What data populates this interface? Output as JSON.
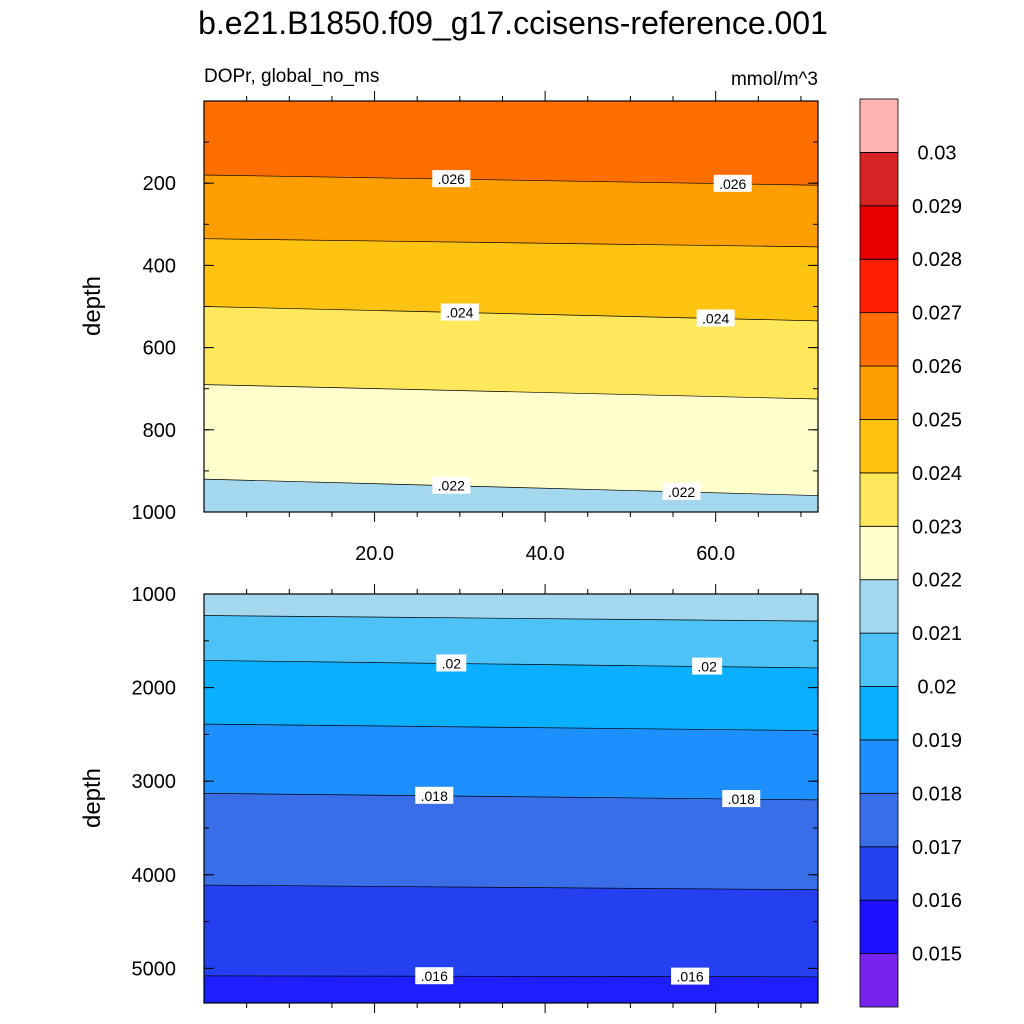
{
  "title": "b.e21.B1850.f09_g17.ccisens-reference.001",
  "subtitle_left": "DOPr, global_no_ms",
  "subtitle_right": "mmol/m^3",
  "chart_data": [
    {
      "type": "heatmap",
      "panel": "upper",
      "ylabel": "depth",
      "xlim": [
        0,
        72
      ],
      "ylim": [
        1000,
        0
      ],
      "x_ticks": [
        20,
        40,
        60
      ],
      "x_tick_labels": [
        "20.0",
        "40.0",
        "60.0"
      ],
      "y_ticks": [
        200,
        400,
        600,
        800,
        1000
      ],
      "y_tick_labels": [
        "200",
        "400",
        "600",
        "800",
        "1000"
      ],
      "contours": [
        {
          "level": 0.026,
          "label": ".026",
          "depth_at_xmin": 180,
          "depth_at_xmax": 205,
          "label_x": [
            29,
            62
          ]
        },
        {
          "level": 0.0255,
          "label": "",
          "depth_at_xmin": 335,
          "depth_at_xmax": 355
        },
        {
          "level": 0.024,
          "label": ".024",
          "depth_at_xmin": 500,
          "depth_at_xmax": 535,
          "label_x": [
            30,
            60
          ]
        },
        {
          "level": 0.0235,
          "label": "",
          "depth_at_xmin": 690,
          "depth_at_xmax": 725
        },
        {
          "level": 0.022,
          "label": ".022",
          "depth_at_xmin": 920,
          "depth_at_xmax": 960,
          "label_x": [
            29,
            56
          ]
        }
      ],
      "bands": [
        {
          "from": 0,
          "value": 0.0262,
          "color": "#FF6F00"
        },
        {
          "from": 1,
          "value": 0.0252,
          "color": "#FF9E00"
        },
        {
          "from": 2,
          "value": 0.0244,
          "color": "#FFC312"
        },
        {
          "from": 3,
          "value": 0.0232,
          "color": "#FFE85C"
        },
        {
          "from": 4,
          "value": 0.0225,
          "color": "#FFFFCD"
        },
        {
          "from": 5,
          "value": 0.0218,
          "color": "#A4D8EE"
        }
      ]
    },
    {
      "type": "heatmap",
      "panel": "lower",
      "ylabel": "depth",
      "xlim": [
        0,
        72
      ],
      "ylim": [
        5370,
        1000
      ],
      "y_ticks": [
        1000,
        2000,
        3000,
        4000,
        5000
      ],
      "y_tick_labels": [
        "1000",
        "2000",
        "3000",
        "4000",
        "5000"
      ],
      "contours": [
        {
          "level": 0.0215,
          "label": "",
          "depth_at_xmin": 1230,
          "depth_at_xmax": 1290
        },
        {
          "level": 0.02,
          "label": ".02",
          "depth_at_xmin": 1710,
          "depth_at_xmax": 1790,
          "label_x": [
            29,
            59
          ]
        },
        {
          "level": 0.0195,
          "label": "",
          "depth_at_xmin": 2390,
          "depth_at_xmax": 2460
        },
        {
          "level": 0.018,
          "label": ".018",
          "depth_at_xmin": 3130,
          "depth_at_xmax": 3200,
          "label_x": [
            27,
            63
          ]
        },
        {
          "level": 0.0165,
          "label": "",
          "depth_at_xmin": 4110,
          "depth_at_xmax": 4160
        },
        {
          "level": 0.016,
          "label": ".016",
          "depth_at_xmin": 5080,
          "depth_at_xmax": 5090,
          "label_x": [
            27,
            57
          ]
        }
      ],
      "bands": [
        {
          "from": 0,
          "value": 0.0212,
          "color": "#A4D8EE"
        },
        {
          "from": 1,
          "value": 0.0205,
          "color": "#4DC2F7"
        },
        {
          "from": 2,
          "value": 0.0195,
          "color": "#0AAFFF"
        },
        {
          "from": 3,
          "value": 0.0185,
          "color": "#1E8FFF"
        },
        {
          "from": 4,
          "value": 0.0175,
          "color": "#3A6EE8"
        },
        {
          "from": 5,
          "value": 0.0165,
          "color": "#2440F0"
        },
        {
          "from": 6,
          "value": 0.0155,
          "color": "#1E1EFF"
        }
      ]
    }
  ],
  "colorbar": {
    "labels": [
      "0.015",
      "0.016",
      "0.017",
      "0.018",
      "0.019",
      "0.02",
      "0.021",
      "0.022",
      "0.023",
      "0.024",
      "0.025",
      "0.026",
      "0.027",
      "0.028",
      "0.029",
      "0.03"
    ],
    "colors_bottom_to_top": [
      "#7A22EE",
      "#1E10FF",
      "#2440F0",
      "#3A6EE8",
      "#1E8FFF",
      "#0AAFFF",
      "#4DC2F7",
      "#A4D8EE",
      "#FFFFCD",
      "#FFE85C",
      "#FFC312",
      "#FF9E00",
      "#FF6F00",
      "#FF1E00",
      "#E60000",
      "#D42424",
      "#FFB4B4"
    ]
  }
}
